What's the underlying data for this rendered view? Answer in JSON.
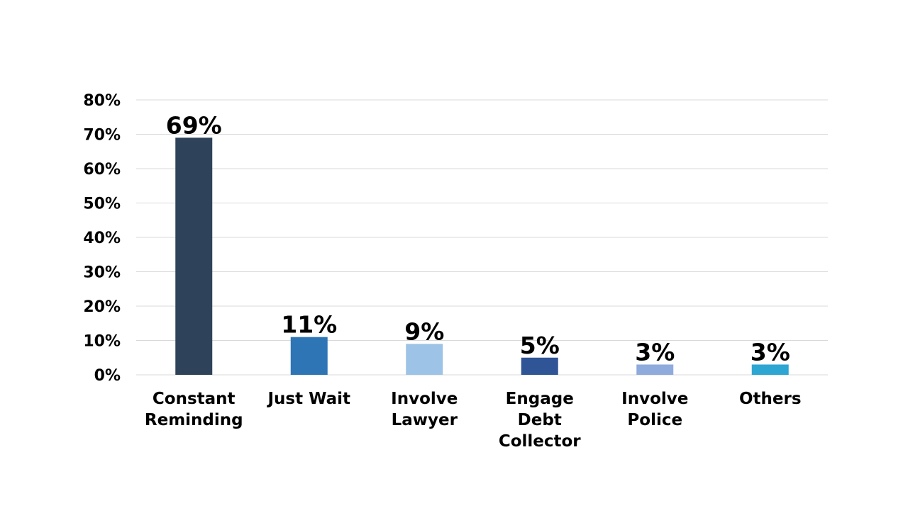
{
  "chart_data": {
    "type": "bar",
    "categories": [
      [
        "Constant",
        "Reminding"
      ],
      [
        "Just Wait"
      ],
      [
        "Involve",
        "Lawyer"
      ],
      [
        "Engage",
        "Debt",
        "Collector"
      ],
      [
        "Involve",
        "Police"
      ],
      [
        "Others"
      ]
    ],
    "values": [
      69,
      11,
      9,
      5,
      3,
      3
    ],
    "data_labels": [
      "69%",
      "11%",
      "9%",
      "5%",
      "3%",
      "3%"
    ],
    "bar_colors": [
      "#2e4359",
      "#2e75b6",
      "#9dc3e6",
      "#2f5597",
      "#8faadc",
      "#2ea6d3"
    ],
    "y_ticks": [
      0,
      10,
      20,
      30,
      40,
      50,
      60,
      70,
      80
    ],
    "y_tick_labels": [
      "0%",
      "10%",
      "20%",
      "30%",
      "40%",
      "50%",
      "60%",
      "70%",
      "80%"
    ],
    "ylim": [
      0,
      80
    ],
    "grid": true,
    "legend": "none",
    "title": "",
    "xlabel": "",
    "ylabel": ""
  }
}
